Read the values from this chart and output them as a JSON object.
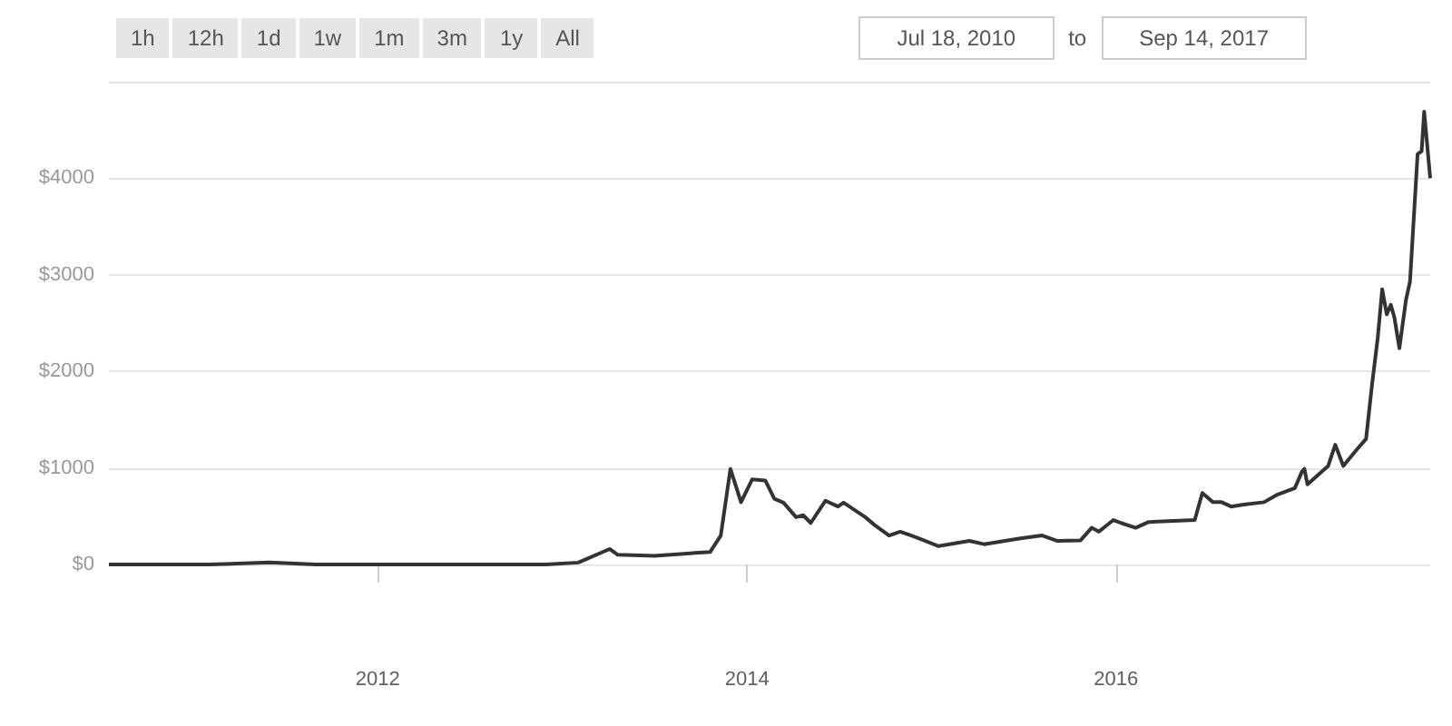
{
  "chart_data": {
    "type": "line",
    "annotations": [
      "1h",
      "12h",
      "1d",
      "1w",
      "1m",
      "3m",
      "1y",
      "All",
      "Jul 18, 2010",
      "to",
      "Sep 14, 2017"
    ],
    "xlim": [
      "2010-07-18",
      "2017-09-14"
    ],
    "xticks": [
      {
        "value": "2012-01-01",
        "label": "2012"
      },
      {
        "value": "2014-01-01",
        "label": "2014"
      },
      {
        "value": "2016-01-01",
        "label": "2016"
      }
    ],
    "ylim": [
      0,
      5000
    ],
    "yticks": [
      {
        "value": 0,
        "label": "$0"
      },
      {
        "value": 1000,
        "label": "$1000"
      },
      {
        "value": 2000,
        "label": "$2000"
      },
      {
        "value": 3000,
        "label": "$3000"
      },
      {
        "value": 4000,
        "label": "$4000"
      },
      {
        "value": 5000,
        "label": null
      }
    ],
    "grid": "y",
    "marker": "none",
    "line_style": "solid",
    "series": [
      {
        "color": "#333333",
        "x": [
          "2010-07-18",
          "2011-02-01",
          "2011-06-01",
          "2011-09-01",
          "2012-01-01",
          "2012-06-01",
          "2012-11-29",
          "2013-02-01",
          "2013-04-04",
          "2013-04-20",
          "2013-07-02",
          "2013-10-20",
          "2013-11-10",
          "2013-11-29",
          "2013-12-20",
          "2014-01-11",
          "2014-02-06",
          "2014-02-24",
          "2014-03-14",
          "2014-04-08",
          "2014-04-22",
          "2014-05-07",
          "2014-06-05",
          "2014-06-30",
          "2014-07-11",
          "2014-08-23",
          "2014-09-10",
          "2014-10-09",
          "2014-10-31",
          "2014-11-22",
          "2015-01-15",
          "2015-03-17",
          "2015-04-15",
          "2015-06-26",
          "2015-08-08",
          "2015-09-06",
          "2015-10-23",
          "2015-11-14",
          "2015-11-28",
          "2015-12-27",
          "2016-01-11",
          "2016-02-09",
          "2016-03-06",
          "2016-06-05",
          "2016-06-20",
          "2016-07-11",
          "2016-07-28",
          "2016-08-16",
          "2016-09-10",
          "2016-10-20",
          "2016-11-14",
          "2016-12-20",
          "2017-01-03",
          "2017-01-08",
          "2017-01-14",
          "2017-02-24",
          "2017-03-10",
          "2017-03-26",
          "2017-04-20",
          "2017-05-10",
          "2017-05-22",
          "2017-06-02",
          "2017-06-11",
          "2017-06-20",
          "2017-06-28",
          "2017-07-05",
          "2017-07-15",
          "2017-07-28",
          "2017-08-05",
          "2017-08-20",
          "2017-08-28",
          "2017-09-02",
          "2017-09-14"
        ],
        "values": [
          0,
          0,
          20,
          0,
          0,
          0,
          0,
          20,
          160,
          100,
          90,
          130,
          300,
          990,
          645,
          880,
          870,
          680,
          640,
          490,
          510,
          430,
          660,
          600,
          640,
          490,
          410,
          300,
          340,
          300,
          190,
          245,
          210,
          270,
          300,
          245,
          250,
          380,
          340,
          460,
          430,
          380,
          440,
          460,
          740,
          645,
          645,
          600,
          620,
          645,
          720,
          790,
          960,
          990,
          830,
          1020,
          1240,
          1020,
          1180,
          1300,
          1870,
          2340,
          2850,
          2590,
          2690,
          2560,
          2240,
          2740,
          2930,
          4250,
          4280,
          4690,
          4000
        ]
      }
    ]
  }
}
